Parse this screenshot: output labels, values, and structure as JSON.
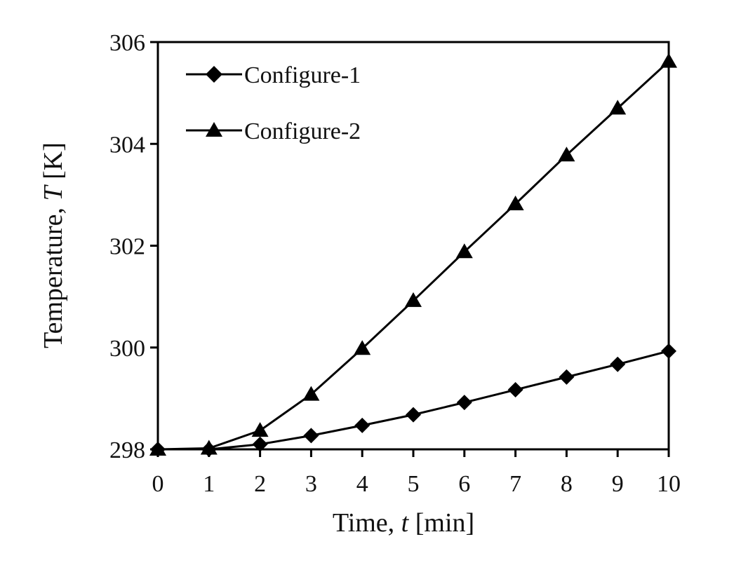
{
  "chart_data": {
    "type": "line",
    "x": [
      0,
      1,
      2,
      3,
      4,
      5,
      6,
      7,
      8,
      9,
      10
    ],
    "series": [
      {
        "name": "Configure-1",
        "marker": "diamond",
        "values": [
          298.0,
          298.0,
          298.1,
          298.27,
          298.47,
          298.68,
          298.92,
          299.17,
          299.42,
          299.67,
          299.93
        ]
      },
      {
        "name": "Configure-2",
        "marker": "triangle",
        "values": [
          298.0,
          298.02,
          298.37,
          299.08,
          299.98,
          300.92,
          301.88,
          302.82,
          303.78,
          304.7,
          305.62
        ]
      }
    ],
    "xlabel_pre": "Time, ",
    "xlabel_var": "t",
    "xlabel_post": " [min]",
    "ylabel_pre": "Temperature, ",
    "ylabel_var": "T",
    "ylabel_post": " [K]",
    "xlim": [
      0,
      10
    ],
    "ylim": [
      298,
      306
    ],
    "xticks": [
      "0",
      "1",
      "2",
      "3",
      "4",
      "5",
      "6",
      "7",
      "8",
      "9",
      "10"
    ],
    "yticks": [
      "298",
      "300",
      "302",
      "304",
      "306"
    ],
    "yticks_values": [
      298,
      300,
      302,
      304,
      306
    ],
    "grid": false,
    "legend_position": "top-left",
    "line_color": "#000000"
  }
}
